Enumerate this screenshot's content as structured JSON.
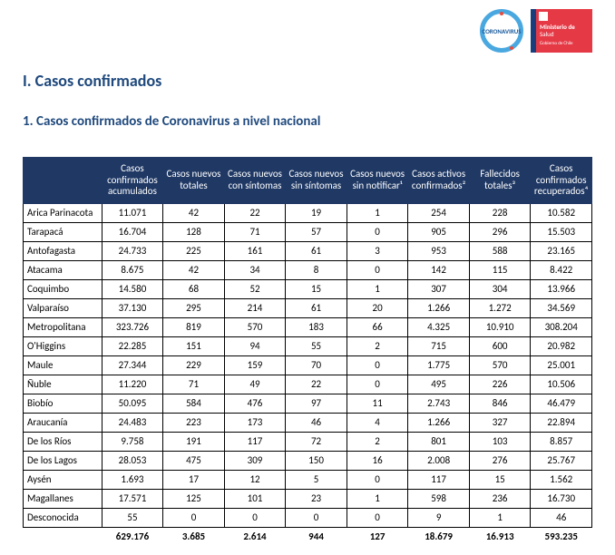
{
  "header": {
    "logo1_text": "CORONAVIRUS",
    "logo2_line1": "Ministerio de",
    "logo2_line2": "Salud",
    "logo2_line3": "Gobierno de Chile"
  },
  "section_title": "I. Casos confirmados",
  "subsection_title": "1. Casos confirmados de Coronavirus a nivel nacional",
  "table": {
    "columns": [
      "",
      "Casos confirmados acumulados",
      "Casos nuevos totales",
      "Casos nuevos con síntomas",
      "Casos nuevos sin síntomas",
      "Casos nuevos sin notificar¹",
      "Casos activos confirmados²",
      "Fallecidos totales³",
      "Casos confirmados recuperados⁴"
    ],
    "rows": [
      [
        "Arica Parinacota",
        "11.071",
        "42",
        "22",
        "19",
        "1",
        "254",
        "228",
        "10.582"
      ],
      [
        "Tarapacá",
        "16.704",
        "128",
        "71",
        "57",
        "0",
        "905",
        "296",
        "15.503"
      ],
      [
        "Antofagasta",
        "24.733",
        "225",
        "161",
        "61",
        "3",
        "953",
        "588",
        "23.165"
      ],
      [
        "Atacama",
        "8.675",
        "42",
        "34",
        "8",
        "0",
        "142",
        "115",
        "8.422"
      ],
      [
        "Coquimbo",
        "14.580",
        "68",
        "52",
        "15",
        "1",
        "307",
        "304",
        "13.966"
      ],
      [
        "Valparaíso",
        "37.130",
        "295",
        "214",
        "61",
        "20",
        "1.266",
        "1.272",
        "34.569"
      ],
      [
        "Metropolitana",
        "323.726",
        "819",
        "570",
        "183",
        "66",
        "4.325",
        "10.910",
        "308.204"
      ],
      [
        "O'Higgins",
        "22.285",
        "151",
        "94",
        "55",
        "2",
        "715",
        "600",
        "20.982"
      ],
      [
        "Maule",
        "27.344",
        "229",
        "159",
        "70",
        "0",
        "1.775",
        "570",
        "25.001"
      ],
      [
        "Ñuble",
        "11.220",
        "71",
        "49",
        "22",
        "0",
        "495",
        "226",
        "10.506"
      ],
      [
        "Biobío",
        "50.095",
        "584",
        "476",
        "97",
        "11",
        "2.743",
        "846",
        "46.479"
      ],
      [
        "Araucanía",
        "24.483",
        "223",
        "173",
        "46",
        "4",
        "1.266",
        "327",
        "22.894"
      ],
      [
        "De los Ríos",
        "9.758",
        "191",
        "117",
        "72",
        "2",
        "801",
        "103",
        "8.857"
      ],
      [
        "De los Lagos",
        "28.053",
        "475",
        "309",
        "150",
        "16",
        "2.008",
        "276",
        "25.767"
      ],
      [
        "Aysén",
        "1.693",
        "17",
        "12",
        "5",
        "0",
        "117",
        "15",
        "1.562"
      ],
      [
        "Magallanes",
        "17.571",
        "125",
        "101",
        "23",
        "1",
        "598",
        "236",
        "16.730"
      ],
      [
        "Desconocida",
        "55",
        "0",
        "0",
        "0",
        "0",
        "9",
        "1",
        "46"
      ]
    ],
    "total": [
      "",
      "629.176",
      "3.685",
      "2.614",
      "944",
      "127",
      "18.679",
      "16.913",
      "593.235"
    ]
  },
  "table_style": {
    "header_bg": "#1f3864",
    "header_fg": "#ffffff",
    "border_color": "#000000",
    "heading_color": "#1f497d",
    "font_size_pt": 11
  }
}
